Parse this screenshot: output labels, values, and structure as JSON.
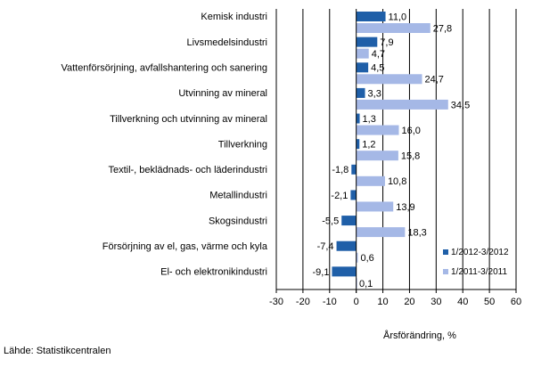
{
  "chart_data": {
    "type": "bar",
    "orientation": "horizontal",
    "categories": [
      "Kemisk industri",
      "Livsmedelsindustri",
      "Vattenförsörjning, avfallshantering och sanering",
      "Utvinning av mineral",
      "Tillverkning och utvinning av mineral",
      "Tillverkning",
      "Textil-, beklädnads- och läderindustri",
      "Metallindustri",
      "Skogsindustri",
      "Försörjning av el, gas, värme och kyla",
      "El- och elektronikindustri"
    ],
    "series": [
      {
        "name": "1/2012-3/2012",
        "color": "#1f5fa8",
        "values": [
          11.0,
          7.9,
          4.5,
          3.3,
          1.3,
          1.2,
          -1.8,
          -2.1,
          -5.5,
          -7.4,
          -9.1
        ],
        "labels": [
          "11,0",
          "7,9",
          "4,5",
          "3,3",
          "1,3",
          "1,2",
          "-1,8",
          "-2,1",
          "-5,5",
          "-7,4",
          "-9,1"
        ]
      },
      {
        "name": "1/2011-3/2011",
        "color": "#a5b8e6",
        "values": [
          27.8,
          4.7,
          24.7,
          34.5,
          16.0,
          15.8,
          10.8,
          13.9,
          18.3,
          0.6,
          0.1
        ],
        "labels": [
          "27,8",
          "4,7",
          "24,7",
          "34,5",
          "16,0",
          "15,8",
          "10,8",
          "13,9",
          "18,3",
          "0,6",
          "0,1"
        ]
      }
    ],
    "xlim": [
      -30,
      60
    ],
    "xticks": [
      -30,
      -20,
      -10,
      0,
      10,
      20,
      30,
      40,
      50,
      60
    ],
    "xtick_labels": [
      "-30",
      "-20",
      "-10",
      "0",
      "10",
      "20",
      "30",
      "40",
      "50",
      "60"
    ],
    "xlabel": "Årsförändring, %",
    "grid": "vertical",
    "legend_position": "bottom-right"
  },
  "source": "Lähde: Statistikcentralen"
}
